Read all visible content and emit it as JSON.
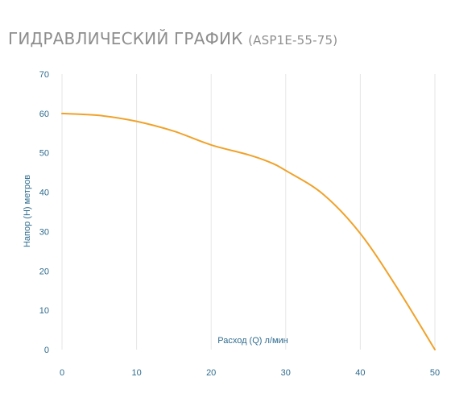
{
  "header": {
    "title_main": "ГИДРАВЛИЧЕСКИЙ ГРАФИК",
    "title_model": "(ASP1E-55-75)"
  },
  "chart_data": {
    "type": "line",
    "title": "ГИДРАВЛИЧЕСКИЙ ГРАФИК (ASP1E-55-75)",
    "xlabel": "Расход (Q) л/мин",
    "ylabel": "Напор (H) метров",
    "xlim": [
      0,
      50
    ],
    "ylim": [
      0,
      70
    ],
    "x_ticks": [
      "0",
      "10",
      "20",
      "30",
      "40",
      "50"
    ],
    "y_ticks": [
      "0",
      "10",
      "20",
      "30",
      "40",
      "50",
      "60",
      "70"
    ],
    "grid": "vertical",
    "series": [
      {
        "color": "#f0a22a",
        "x": [
          0,
          5,
          10,
          15,
          20,
          25,
          28,
          30,
          35,
          40,
          45,
          50
        ],
        "y": [
          60,
          59.5,
          58,
          55.5,
          52,
          49.5,
          47.5,
          45.5,
          39.5,
          29.5,
          15.5,
          0
        ]
      }
    ]
  }
}
